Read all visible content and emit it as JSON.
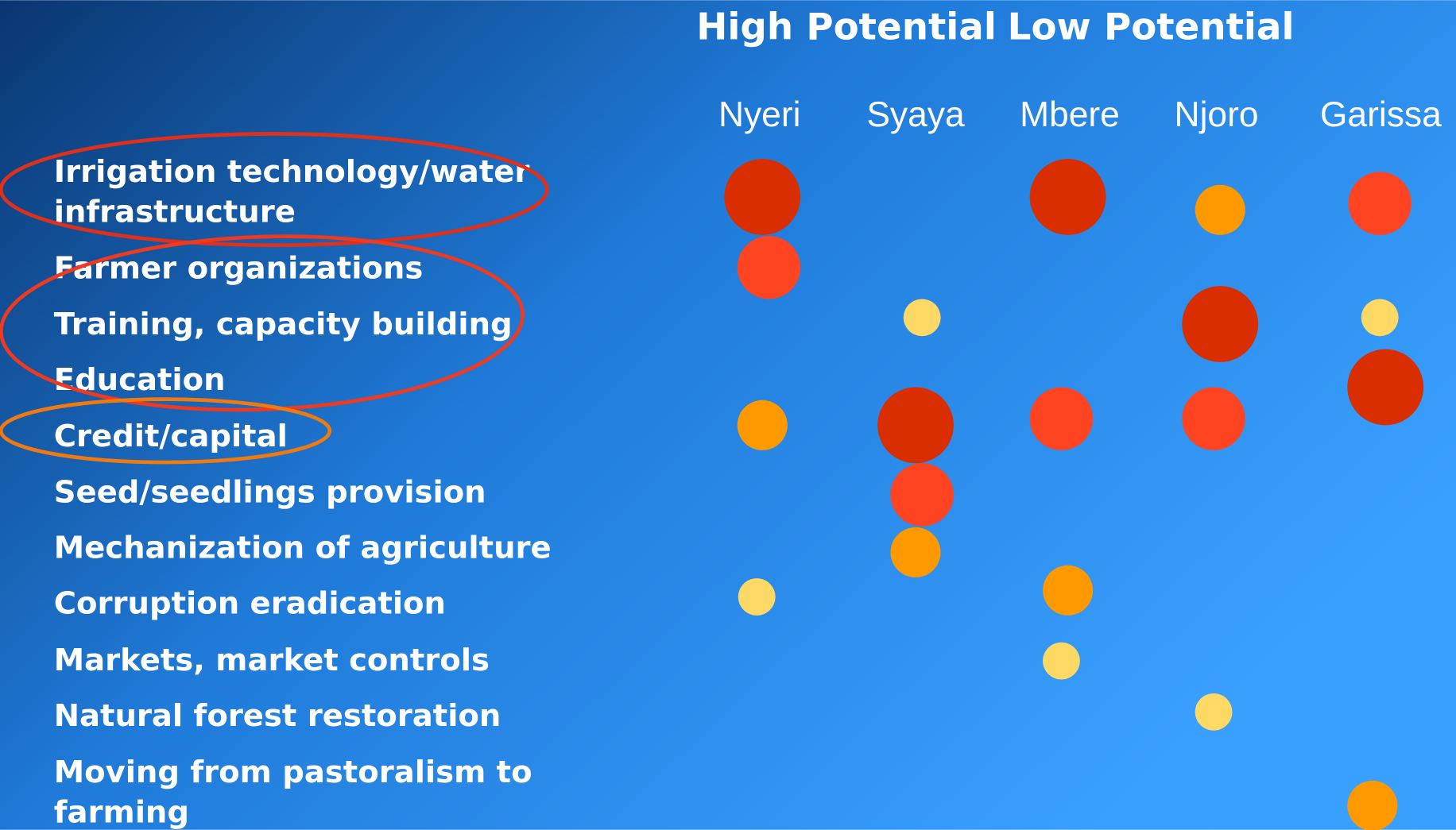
{
  "headings": [
    "High Potential",
    "Low Potential"
  ],
  "columns": [
    "Nyeri",
    "Syaya",
    "Mbere",
    "Njoro",
    "Garissa"
  ],
  "rows": [
    [
      "Irrigation technology/water",
      "infrastructure"
    ],
    [
      "Farmer organizations"
    ],
    [
      "Training, capacity building"
    ],
    [
      "Education"
    ],
    [
      "Credit/capital"
    ],
    [
      "Seed/seedlings provision"
    ],
    [
      "Mechanization of agriculture"
    ],
    [
      "Corruption eradication"
    ],
    [
      "Markets, market controls"
    ],
    [
      "Natural forest restoration"
    ],
    [
      "Moving from pastoralism to",
      "farming"
    ]
  ]
}
